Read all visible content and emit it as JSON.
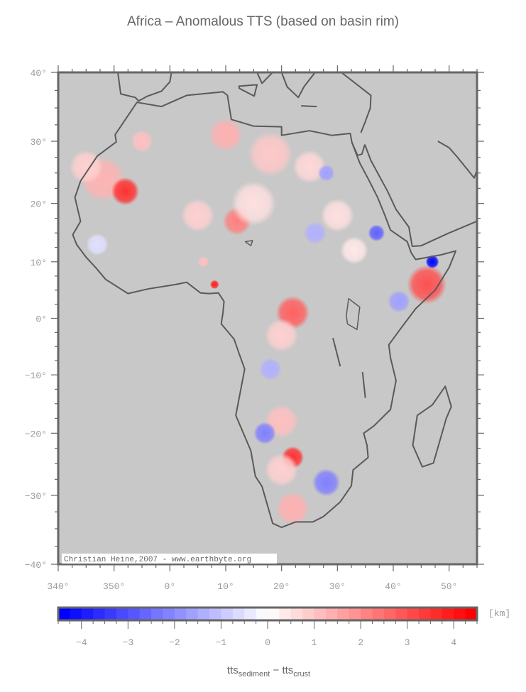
{
  "title": "Africa – Anomalous TTS (based on basin rim)",
  "credit": "Christian Heine,2007 - www.earthbyte.org",
  "map": {
    "projection": "mercator",
    "lon_range": [
      -20,
      55
    ],
    "lat_range": [
      -40,
      40
    ],
    "lon_tick_labels": [
      "340°",
      "350°",
      "0°",
      "10°",
      "20°",
      "30°",
      "40°",
      "50°"
    ],
    "lat_tick_labels": [
      "40°",
      "30°",
      "20°",
      "10°",
      "0°",
      "−10°",
      "−20°",
      "−30°",
      "−40°"
    ],
    "land_color": "#c8c8c8",
    "coast_color": "#5a5a5a"
  },
  "colorbar": {
    "unit": "[km]",
    "range": [
      -4.5,
      4.5
    ],
    "step": 0.25,
    "tick_labels": [
      "−4",
      "−3",
      "−2",
      "−1",
      "0",
      "1",
      "2",
      "3",
      "4"
    ],
    "low_color": "#0000ff",
    "mid_color": "#ffffff",
    "high_color": "#ff0000",
    "label_main1": "tts",
    "label_sub1": "sediment",
    "label_sep": " − tts",
    "label_sub2": "crust"
  }
}
